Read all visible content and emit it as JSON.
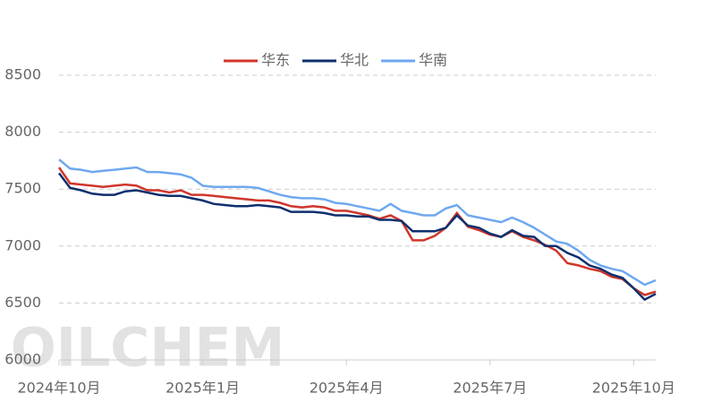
{
  "chart_data": {
    "type": "line",
    "watermark": "OILCHEM",
    "categories": [
      "2024年10月",
      null,
      null,
      null,
      null,
      null,
      null,
      null,
      null,
      null,
      null,
      null,
      null,
      "2025年1月",
      null,
      null,
      null,
      null,
      null,
      null,
      null,
      null,
      null,
      null,
      null,
      null,
      "2025年4月",
      null,
      null,
      null,
      null,
      null,
      null,
      null,
      null,
      null,
      null,
      null,
      null,
      "2025年7月",
      null,
      null,
      null,
      null,
      null,
      null,
      null,
      null,
      null,
      null,
      null,
      null,
      "2025年10月",
      null,
      null
    ],
    "series": [
      {
        "name": "华东",
        "color": "#d0352b",
        "values": [
          7690,
          7550,
          7540,
          7530,
          7520,
          7530,
          7540,
          7530,
          7490,
          7490,
          7470,
          7490,
          7450,
          7450,
          7440,
          7430,
          7420,
          7410,
          7400,
          7400,
          7380,
          7350,
          7340,
          7350,
          7340,
          7310,
          7310,
          7290,
          7270,
          7240,
          7270,
          7220,
          7050,
          7050,
          7090,
          7160,
          7290,
          7170,
          7140,
          7100,
          7080,
          7130,
          7080,
          7050,
          7010,
          6960,
          6850,
          6830,
          6800,
          6780,
          6730,
          6710,
          6630,
          6570,
          6600
        ]
      },
      {
        "name": "华北",
        "color": "#0d2f6e",
        "values": [
          7640,
          7510,
          7490,
          7460,
          7450,
          7450,
          7480,
          7490,
          7470,
          7450,
          7440,
          7440,
          7420,
          7400,
          7370,
          7360,
          7350,
          7350,
          7360,
          7350,
          7340,
          7300,
          7300,
          7300,
          7290,
          7270,
          7270,
          7260,
          7260,
          7230,
          7230,
          7220,
          7130,
          7130,
          7130,
          7160,
          7270,
          7180,
          7160,
          7110,
          7080,
          7140,
          7090,
          7080,
          7000,
          7000,
          6940,
          6900,
          6830,
          6800,
          6750,
          6720,
          6630,
          6530,
          6580
        ]
      },
      {
        "name": "华南",
        "color": "#6fa8ef",
        "values": [
          7760,
          7680,
          7670,
          7650,
          7660,
          7670,
          7680,
          7690,
          7650,
          7650,
          7640,
          7630,
          7600,
          7530,
          7520,
          7520,
          7520,
          7520,
          7510,
          7480,
          7450,
          7430,
          7420,
          7420,
          7410,
          7380,
          7370,
          7350,
          7330,
          7310,
          7370,
          7310,
          7290,
          7270,
          7270,
          7330,
          7360,
          7270,
          7250,
          7230,
          7210,
          7250,
          7210,
          7160,
          7100,
          7040,
          7020,
          6960,
          6880,
          6830,
          6800,
          6780,
          6720,
          6660,
          6700
        ]
      }
    ],
    "ylim": [
      6000,
      8500
    ],
    "yticks": [
      6000,
      6500,
      7000,
      7500,
      8000,
      8500
    ],
    "grid": true
  }
}
